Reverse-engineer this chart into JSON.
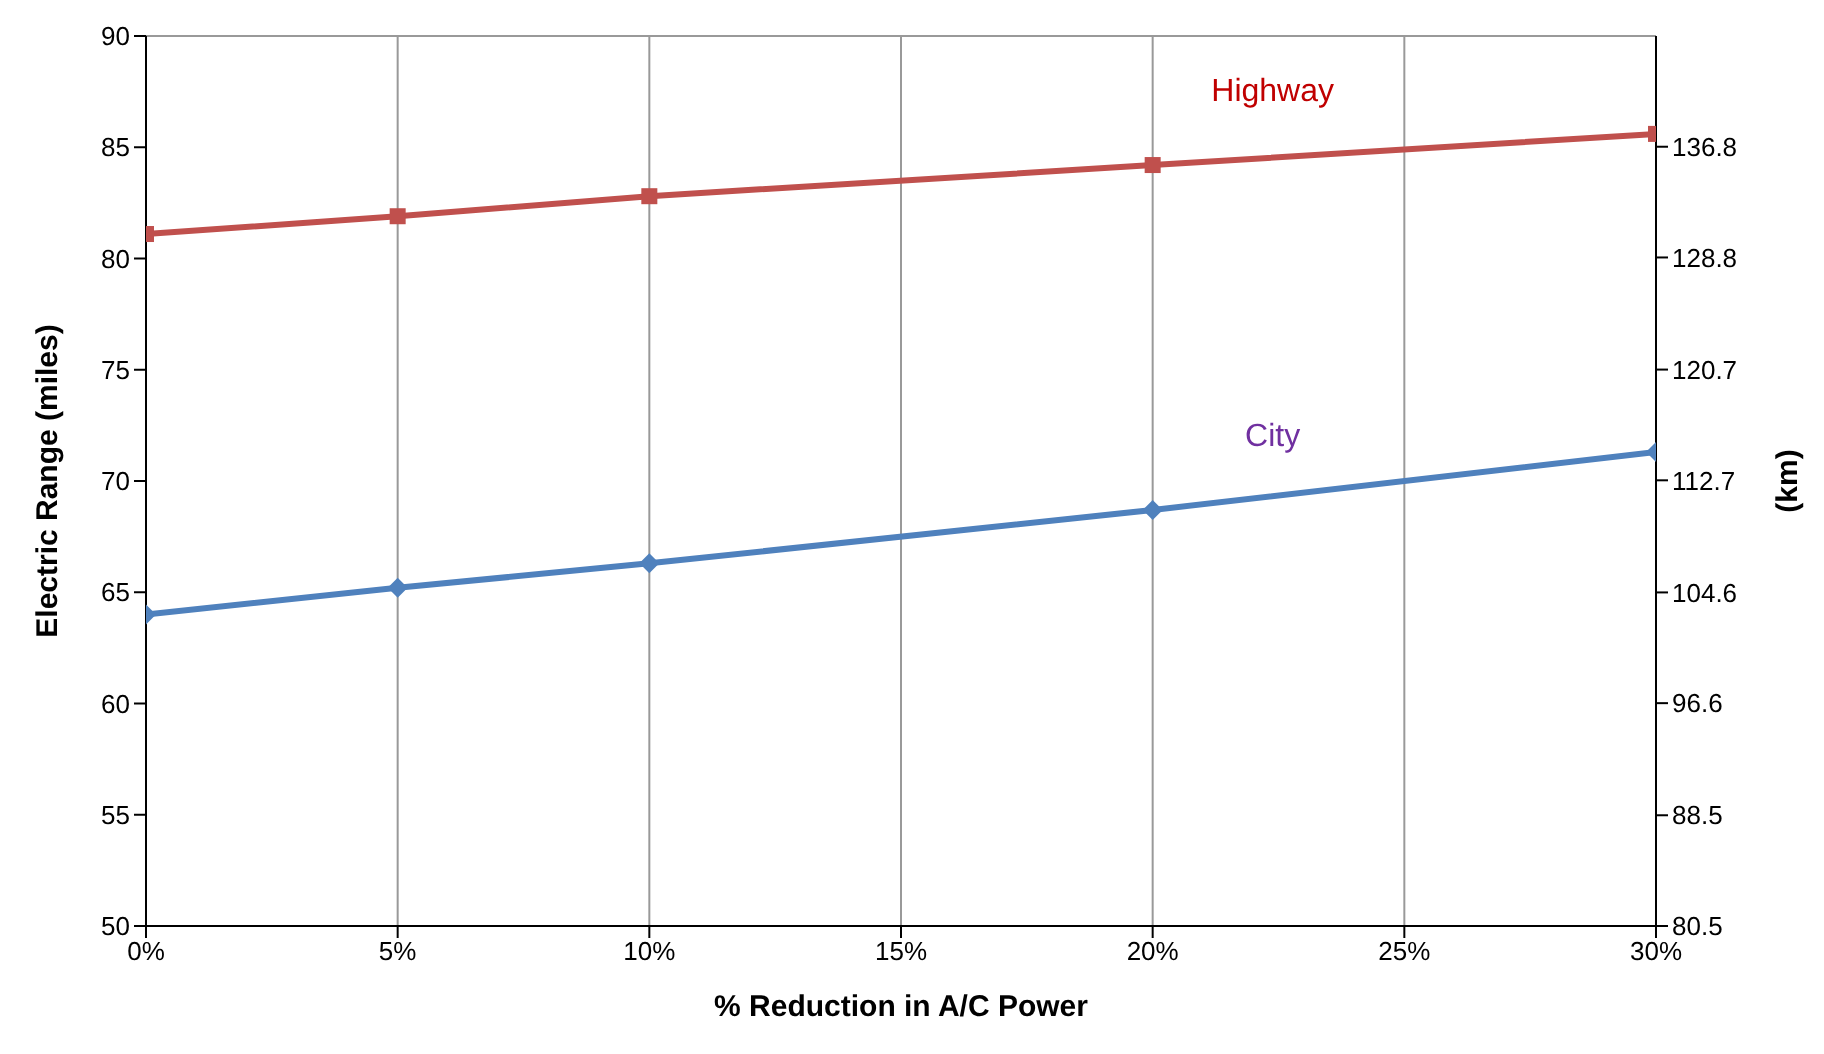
{
  "chart_data": {
    "type": "line",
    "xlabel": "% Reduction in A/C Power",
    "ylabel": "Electric Range (miles)",
    "y2label": "(km)",
    "x": [
      0,
      5,
      10,
      20,
      30
    ],
    "xlim": [
      0,
      30
    ],
    "xticks": [
      {
        "value": 0,
        "label": "0%"
      },
      {
        "value": 5,
        "label": "5%"
      },
      {
        "value": 10,
        "label": "10%"
      },
      {
        "value": 15,
        "label": "15%"
      },
      {
        "value": 20,
        "label": "20%"
      },
      {
        "value": 25,
        "label": "25%"
      },
      {
        "value": 30,
        "label": "30%"
      }
    ],
    "ylim": [
      50,
      90
    ],
    "yticks": [
      50,
      55,
      60,
      65,
      70,
      75,
      80,
      85,
      90
    ],
    "y2lim": [
      80.5,
      144.8
    ],
    "y2ticks": [
      80.5,
      88.5,
      96.6,
      104.6,
      112.7,
      120.7,
      128.8,
      136.8
    ],
    "grid": true,
    "series": [
      {
        "name": "Highway",
        "color": "#c0504d",
        "marker": "square",
        "values": [
          81.1,
          81.9,
          82.8,
          84.2,
          85.6
        ]
      },
      {
        "name": "City",
        "color": "#4f81bd",
        "marker": "diamond",
        "values": [
          64.0,
          65.2,
          66.3,
          68.7,
          71.3
        ]
      }
    ]
  }
}
